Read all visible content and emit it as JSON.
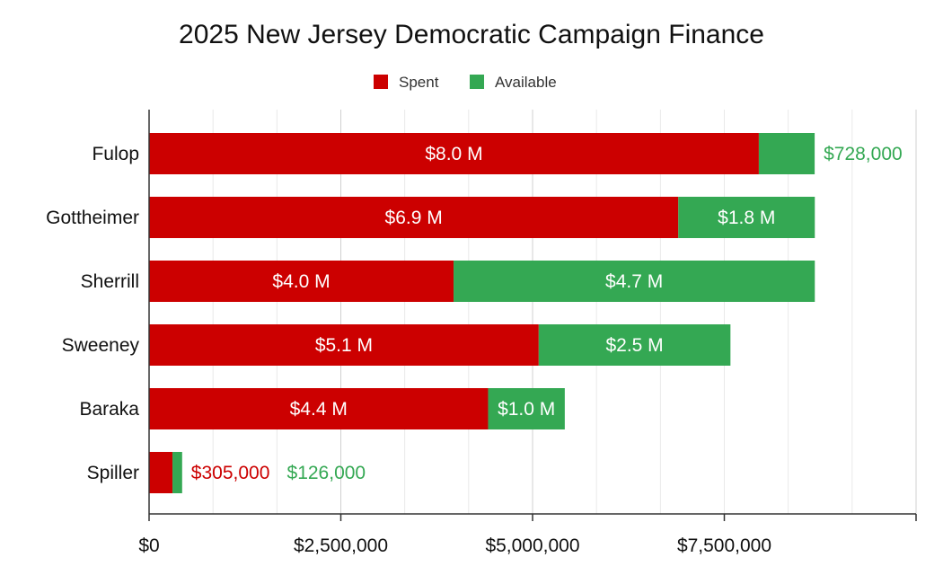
{
  "chart_data": {
    "type": "bar",
    "orientation": "horizontal",
    "stacked": true,
    "title": "2025 New Jersey Democratic Campaign Finance",
    "categories": [
      "Fulop",
      "Gottheimer",
      "Sherrill",
      "Sweeney",
      "Baraka",
      "Spiller"
    ],
    "series": [
      {
        "name": "Spent",
        "color": "#cc0000",
        "values": [
          7950000,
          6900000,
          3970000,
          5080000,
          4420000,
          305000
        ],
        "labels": [
          "$8.0 M",
          "$6.9 M",
          "$4.0 M",
          "$5.1 M",
          "$4.4 M",
          "$305,000"
        ]
      },
      {
        "name": "Available",
        "color": "#34a853",
        "values": [
          728000,
          1780000,
          4710000,
          2500000,
          1000000,
          126000
        ],
        "labels": [
          "$728,000",
          "$1.8 M",
          "$4.7 M",
          "$2.5 M",
          "$1.0 M",
          "$126,000"
        ]
      }
    ],
    "xlim": [
      0,
      10000000
    ],
    "x_ticks": [
      0,
      2500000,
      5000000,
      7500000,
      10000000
    ],
    "x_tick_labels": [
      "$0",
      "$2,500,000",
      "$5,000,000",
      "$7,500,000",
      ""
    ],
    "grid": true,
    "legend_position": "top-center"
  }
}
